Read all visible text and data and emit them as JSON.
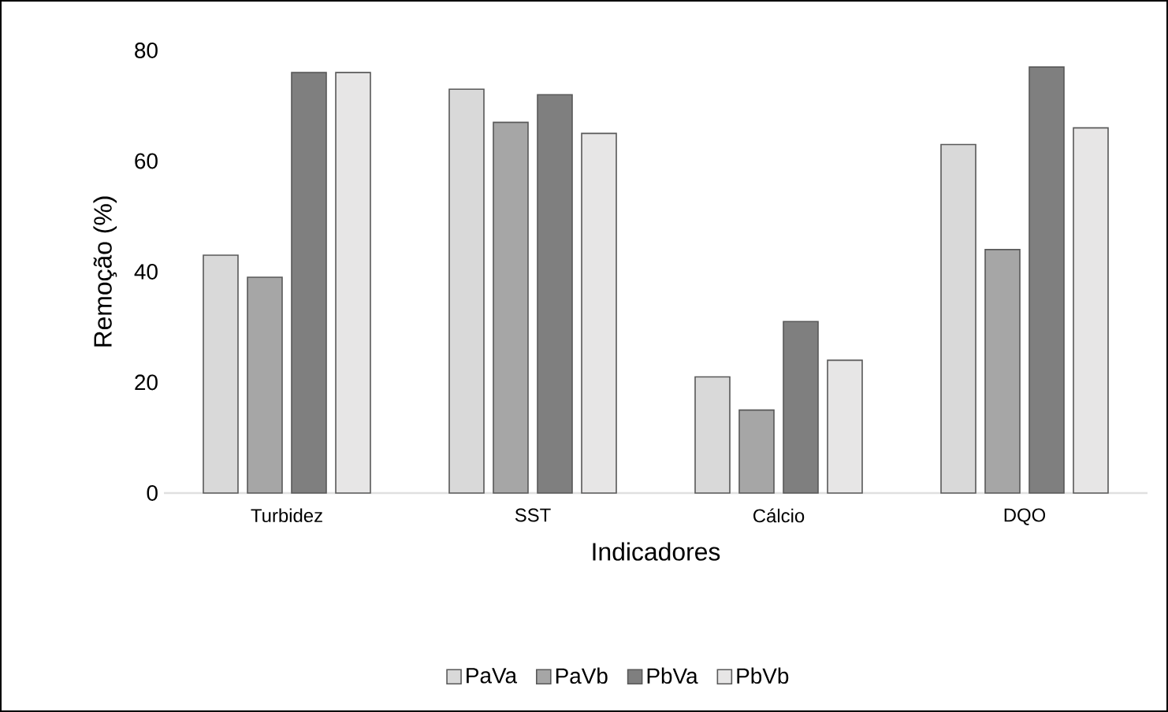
{
  "chart_data": {
    "type": "bar",
    "xlabel": "Indicadores",
    "ylabel": "Remoção (%)",
    "categories": [
      "Turbidez",
      "SST",
      "Cálcio",
      "DQO"
    ],
    "series": [
      {
        "name": "PaVa",
        "color": "#d9d9d9",
        "values": [
          43,
          73,
          21,
          63
        ]
      },
      {
        "name": "PaVb",
        "color": "#a6a6a6",
        "values": [
          39,
          67,
          15,
          44
        ]
      },
      {
        "name": "PbVa",
        "color": "#7f7f7f",
        "values": [
          76,
          72,
          31,
          77
        ]
      },
      {
        "name": "PbVb",
        "color": "#e7e6e6",
        "values": [
          76,
          65,
          24,
          66
        ]
      }
    ],
    "ylim": [
      0,
      80
    ],
    "yticks": [
      0,
      20,
      40,
      60,
      80
    ],
    "grid": false,
    "legend": "bottom"
  }
}
